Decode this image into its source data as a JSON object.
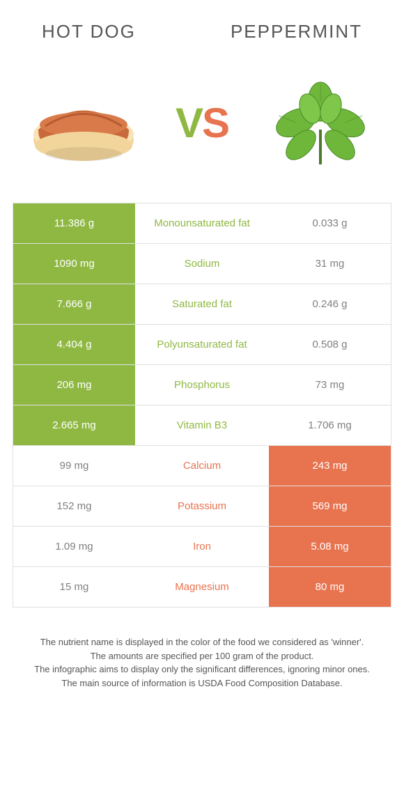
{
  "colors": {
    "green": "#8fb843",
    "orange": "#e8734f",
    "text": "#555555",
    "border": "#e0e0e0",
    "bg": "#ffffff"
  },
  "header": {
    "left_title": "Hot dog",
    "right_title": "Peppermint"
  },
  "vs": {
    "v": "V",
    "s": "S"
  },
  "left_food": {
    "name": "hot-dog"
  },
  "right_food": {
    "name": "peppermint"
  },
  "table": {
    "type": "comparison-table",
    "rows": [
      {
        "left": "11.386 g",
        "mid": "Monounsaturated fat",
        "right": "0.033 g",
        "winner": "left"
      },
      {
        "left": "1090 mg",
        "mid": "Sodium",
        "right": "31 mg",
        "winner": "left"
      },
      {
        "left": "7.666 g",
        "mid": "Saturated fat",
        "right": "0.246 g",
        "winner": "left"
      },
      {
        "left": "4.404 g",
        "mid": "Polyunsaturated fat",
        "right": "0.508 g",
        "winner": "left"
      },
      {
        "left": "206 mg",
        "mid": "Phosphorus",
        "right": "73 mg",
        "winner": "left"
      },
      {
        "left": "2.665 mg",
        "mid": "Vitamin B3",
        "right": "1.706 mg",
        "winner": "left"
      },
      {
        "left": "99 mg",
        "mid": "Calcium",
        "right": "243 mg",
        "winner": "right"
      },
      {
        "left": "152 mg",
        "mid": "Potassium",
        "right": "569 mg",
        "winner": "right"
      },
      {
        "left": "1.09 mg",
        "mid": "Iron",
        "right": "5.08 mg",
        "winner": "right"
      },
      {
        "left": "15 mg",
        "mid": "Magnesium",
        "right": "80 mg",
        "winner": "right"
      }
    ]
  },
  "footer": {
    "line1": "The nutrient name is displayed in the color of the food we considered as 'winner'.",
    "line2": "The amounts are specified per 100 gram of the product.",
    "line3": "The infographic aims to display only the significant differences, ignoring minor ones.",
    "line4": "The main source of information is USDA Food Composition Database."
  }
}
